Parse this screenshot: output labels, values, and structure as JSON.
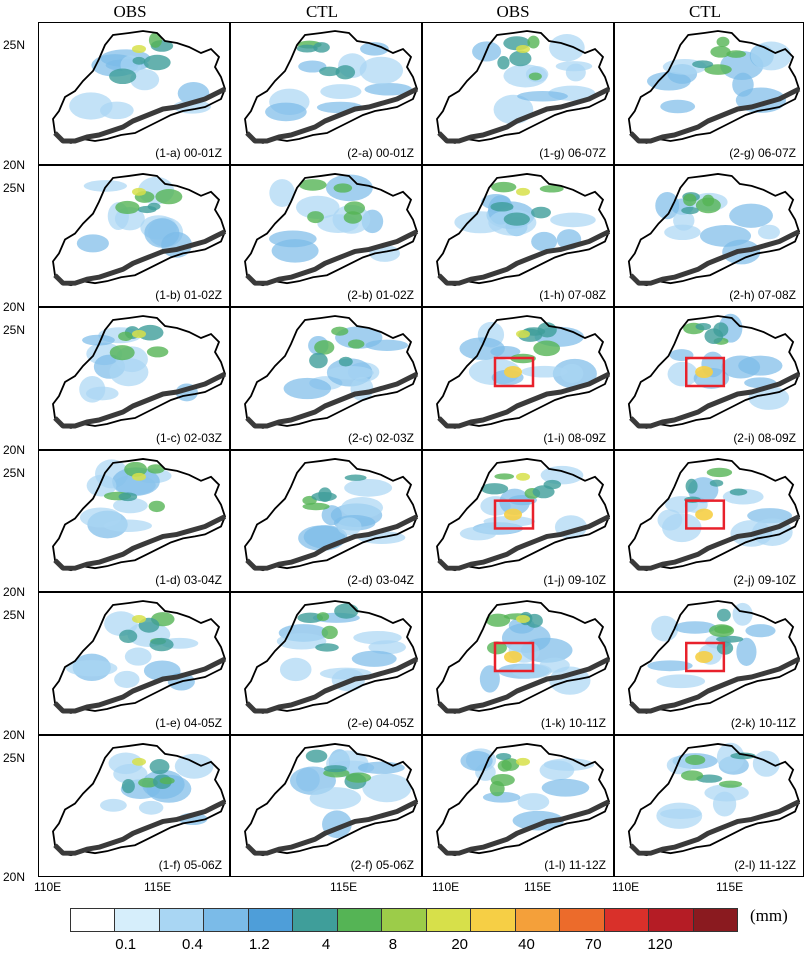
{
  "column_titles": [
    "OBS",
    "CTL",
    "OBS",
    "CTL"
  ],
  "lat_labels": {
    "north": "25N",
    "south": "20N"
  },
  "lon_labels": [
    "110E",
    "115E"
  ],
  "panels": [
    [
      "(1-a) 00-01Z",
      "(2-a) 00-01Z",
      "(1-g) 06-07Z",
      "(2-g) 06-07Z"
    ],
    [
      "(1-b) 01-02Z",
      "(2-b) 01-02Z",
      "(1-h) 07-08Z",
      "(2-h) 07-08Z"
    ],
    [
      "(1-c) 02-03Z",
      "(2-c) 02-03Z",
      "(1-i) 08-09Z",
      "(2-i) 08-09Z"
    ],
    [
      "(1-d) 03-04Z",
      "(2-d) 03-04Z",
      "(1-j) 09-10Z",
      "(2-j) 09-10Z"
    ],
    [
      "(1-e) 04-05Z",
      "(2-e) 04-05Z",
      "(1-k) 10-11Z",
      "(2-k) 10-11Z"
    ],
    [
      "(1-f) 05-06Z",
      "(2-f) 05-06Z",
      "(1-l) 11-12Z",
      "(2-l) 11-12Z"
    ]
  ],
  "highlight_box_panels": [
    "(1-i)",
    "(2-i)",
    "(1-j)",
    "(2-j)",
    "(1-k)",
    "(2-k)"
  ],
  "highlight_color": "#e8212b",
  "colorbar": {
    "unit": "(mm)",
    "tick_labels": [
      "0.1",
      "0.4",
      "1.2",
      "4",
      "8",
      "20",
      "40",
      "70",
      "120"
    ],
    "colors": [
      "#ffffff",
      "#d6eefb",
      "#a9d6f3",
      "#7bbbe8",
      "#4e9ed9",
      "#3f9e9a",
      "#55b455",
      "#9ccc49",
      "#d7e04a",
      "#f6cf45",
      "#f4a03a",
      "#ec6b2b",
      "#d9302a",
      "#b51c25",
      "#8a1a1f"
    ]
  }
}
